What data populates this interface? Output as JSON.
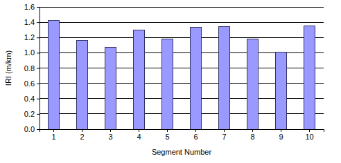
{
  "chart_data": {
    "type": "bar",
    "x_label": "Segment Number",
    "y_label": "IRI (m/km)",
    "categories": [
      "1",
      "2",
      "3",
      "4",
      "5",
      "6",
      "7",
      "8",
      "9",
      "10"
    ],
    "values": [
      1.42,
      1.16,
      1.07,
      1.3,
      1.18,
      1.33,
      1.34,
      1.18,
      1.01,
      1.35
    ],
    "color": "#9999ff",
    "ylim": [
      0,
      1.6
    ],
    "yticks": [
      {
        "value": 0,
        "label": "0.0"
      },
      0.2,
      0.4,
      0.6,
      0.8,
      {
        "value": 1,
        "label": "1.0"
      },
      1.2,
      1.4,
      1.6
    ],
    "grid": true
  }
}
